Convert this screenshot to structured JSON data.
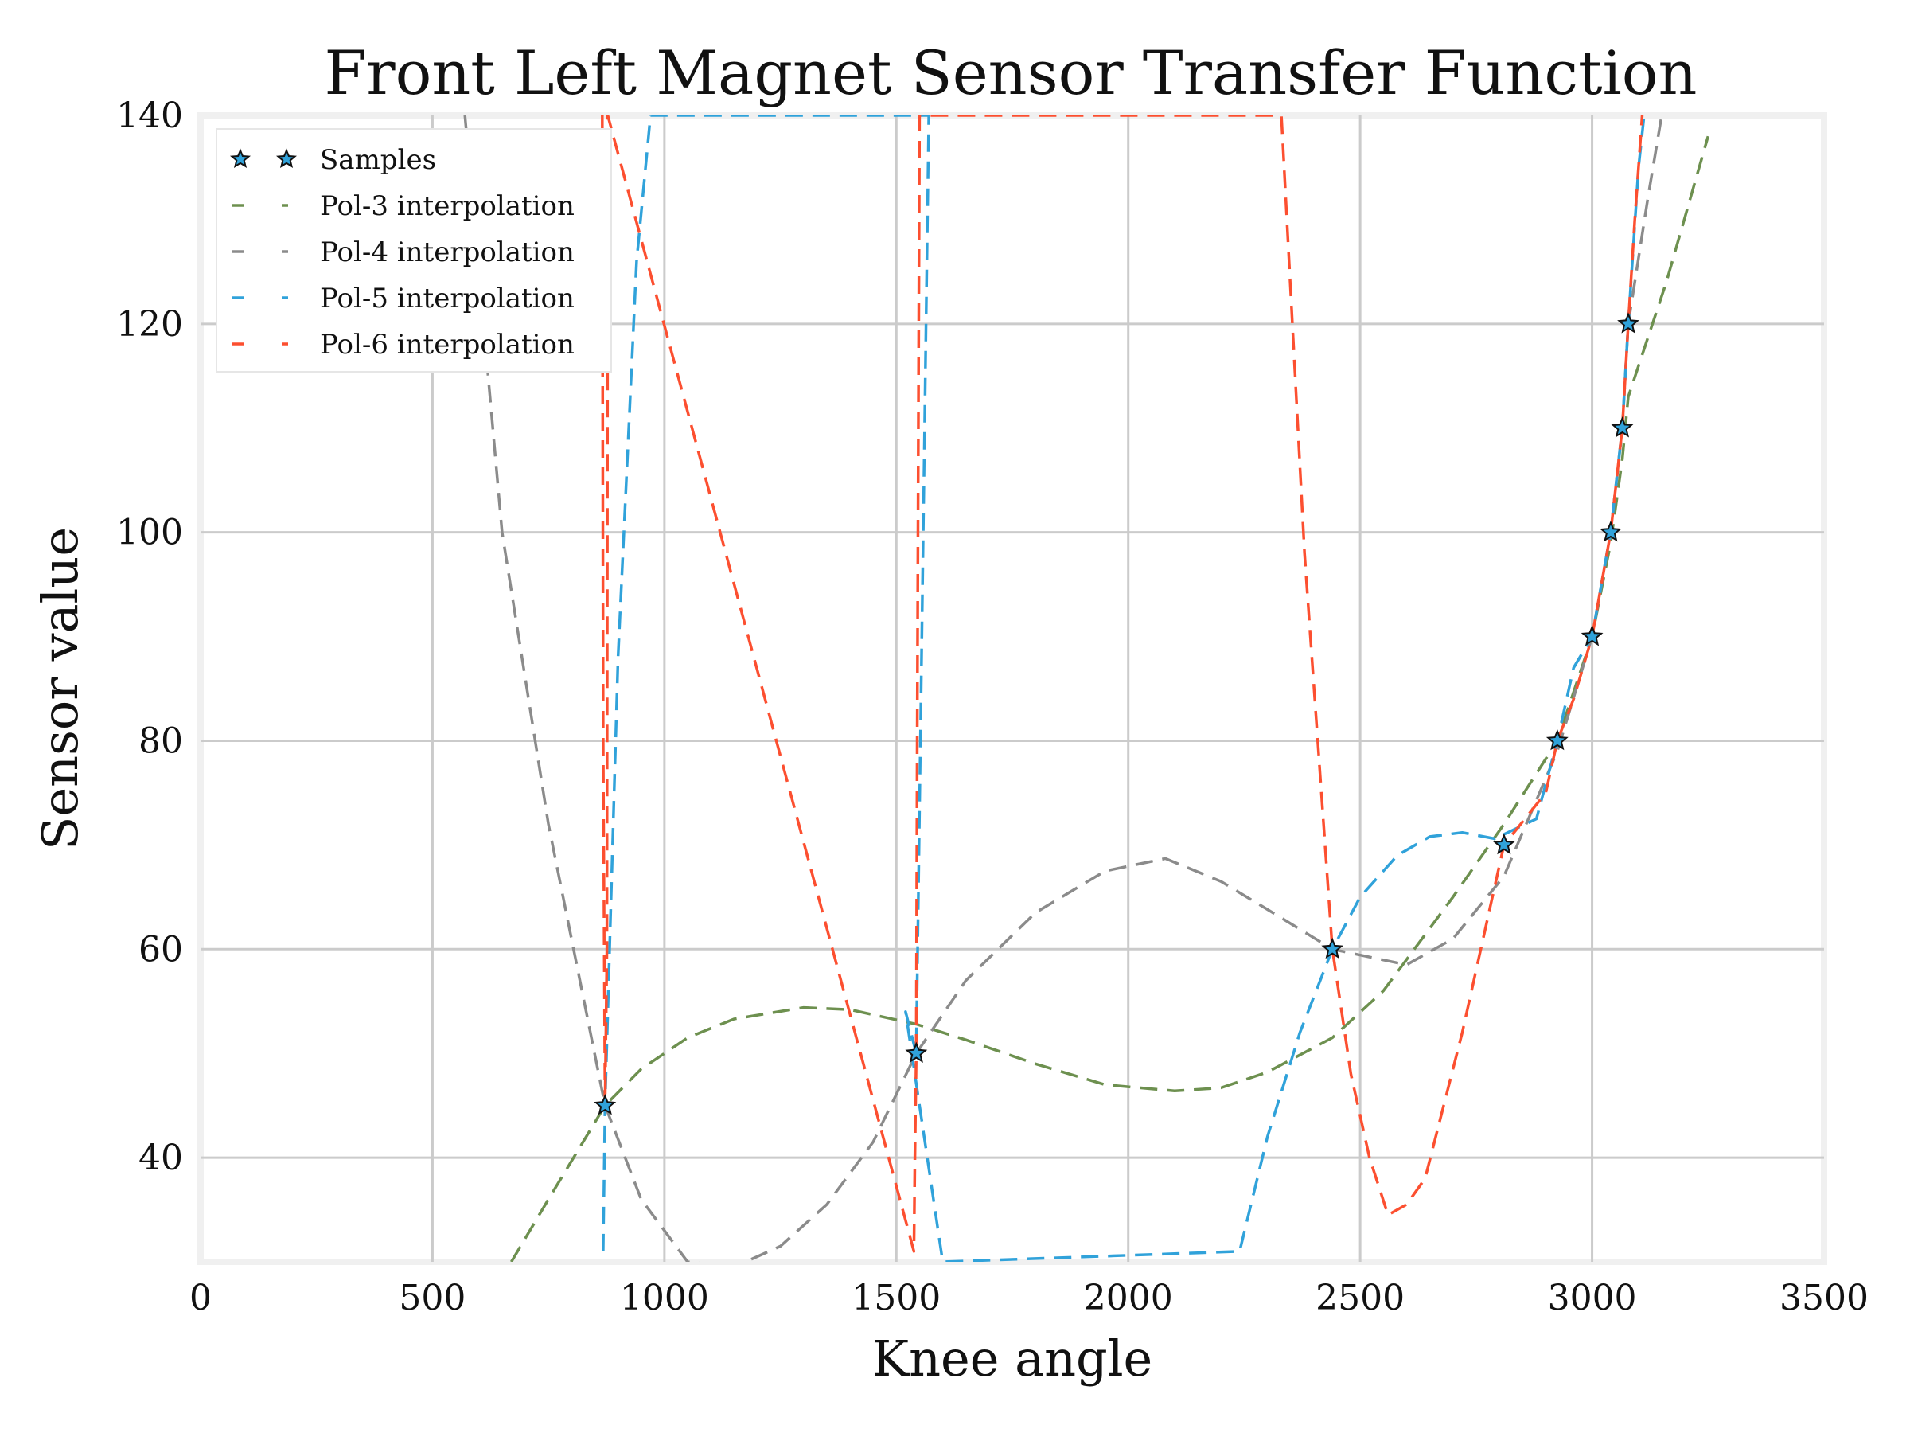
{
  "chart_data": {
    "type": "line",
    "title": "Front Left Magnet Sensor Transfer Function",
    "xlabel": "Knee angle",
    "ylabel": "Sensor value",
    "xlim": [
      0,
      3500
    ],
    "ylim": [
      30,
      140
    ],
    "xticks": [
      0,
      500,
      1000,
      1500,
      2000,
      2500,
      3000,
      3500
    ],
    "yticks": [
      40,
      60,
      80,
      100,
      120,
      140
    ],
    "grid": true,
    "legend_position": "top-left",
    "samples": {
      "name": "Samples",
      "color": "#30a2da",
      "x": [
        872,
        1543,
        2440,
        2810,
        2925,
        3000,
        3040,
        3065,
        3078
      ],
      "y": [
        45,
        50,
        60,
        70,
        80,
        90,
        100,
        110,
        120
      ]
    },
    "series": [
      {
        "name": "Pol-3 interpolation",
        "color": "#6d904f",
        "x": [
          670,
          750,
          872,
          950,
          1050,
          1150,
          1300,
          1400,
          1543,
          1650,
          1800,
          1950,
          2100,
          2200,
          2300,
          2440,
          2550,
          2700,
          2810,
          2925,
          3000,
          3040,
          3065,
          3078,
          3160,
          3250
        ],
        "y": [
          30,
          36,
          45,
          48.5,
          51.5,
          53.3,
          54.4,
          54.2,
          52.8,
          51.3,
          49,
          47,
          46.4,
          46.7,
          48.2,
          51.5,
          56,
          65,
          72,
          80,
          90,
          99,
          107,
          113,
          124,
          138
        ]
      },
      {
        "name": "Pol-4 interpolation",
        "color": "#8b8b8b",
        "x": [
          570,
          650,
          750,
          872,
          950,
          1050,
          1150,
          1250,
          1350,
          1450,
          1543,
          1650,
          1800,
          1950,
          2080,
          2200,
          2330,
          2440,
          2600,
          2700,
          2810,
          2925,
          3000,
          3040,
          3065,
          3078,
          3120,
          3150
        ],
        "y": [
          140,
          100,
          72,
          45,
          36,
          30,
          29.5,
          31.5,
          35.5,
          41.5,
          50,
          57,
          63.5,
          67.5,
          68.7,
          66.5,
          63,
          60,
          58.5,
          61,
          67,
          79,
          90,
          100,
          110,
          120,
          132,
          140
        ]
      },
      {
        "name": "Pol-5 interpolation",
        "color": "#30a2da",
        "x": [
          868,
          872,
          900,
          940,
          970,
          1570,
          1543,
          1520,
          1600,
          2240,
          2300,
          2370,
          2440,
          2500,
          2580,
          2650,
          2720,
          2790,
          2880,
          2925,
          2960,
          3000,
          3040,
          3065,
          3078,
          3100,
          3112
        ],
        "y": [
          31,
          45,
          88,
          126,
          140,
          140,
          50,
          54,
          30,
          31,
          42,
          52,
          60,
          65,
          69,
          70.8,
          71.2,
          70.6,
          72.5,
          80,
          87,
          90,
          100,
          110,
          120,
          135,
          140
        ]
      },
      {
        "name": "Pol-6 interpolation",
        "color": "#fc4f30",
        "x": [
          866,
          868,
          872,
          876,
          878,
          1538,
          1540,
          1543,
          1545,
          1550,
          2330,
          2380,
          2440,
          2480,
          2520,
          2560,
          2600,
          2640,
          2720,
          2810,
          2900,
          2925,
          2960,
          3000,
          3040,
          3065,
          3078,
          3092,
          3108
        ],
        "y": [
          140,
          80,
          45,
          60,
          140,
          31,
          40,
          50,
          80,
          140,
          140,
          98,
          60,
          48,
          40,
          34.5,
          35.5,
          38,
          52,
          70,
          75,
          80,
          84,
          90,
          100,
          110,
          120,
          130,
          140
        ]
      }
    ]
  }
}
